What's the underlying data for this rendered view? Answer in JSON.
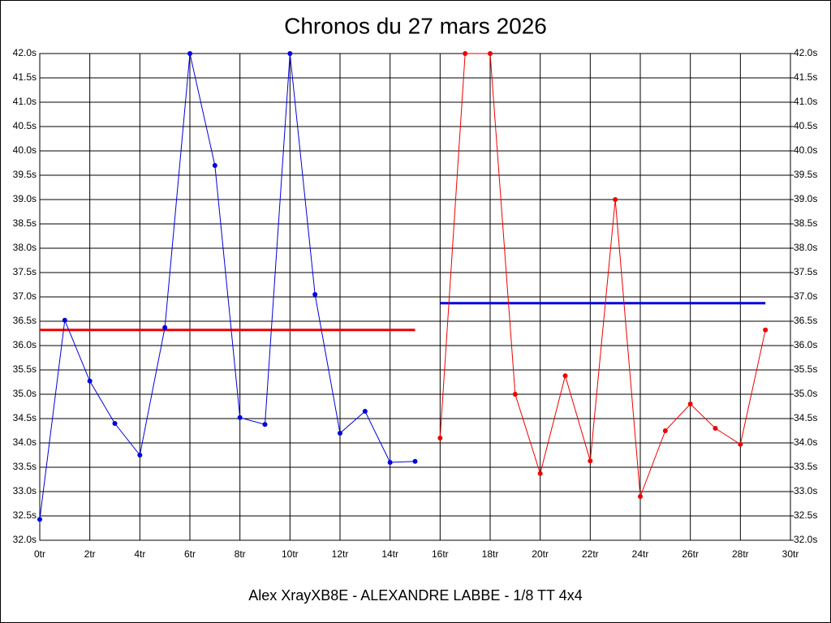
{
  "chart_data": {
    "type": "line",
    "title": "Chronos du 27 mars 2026",
    "footer": "Alex XrayXB8E - ALEXANDRE LABBE - 1/8 TT 4x4",
    "grid": true,
    "xlim": [
      0,
      30
    ],
    "ylim": [
      32,
      42
    ],
    "y2lim": [
      32,
      42
    ],
    "xticks": [
      {
        "value": 0,
        "label": "0tr"
      },
      {
        "value": 2,
        "label": "2tr"
      },
      {
        "value": 4,
        "label": "4tr"
      },
      {
        "value": 6,
        "label": "6tr"
      },
      {
        "value": 8,
        "label": "8tr"
      },
      {
        "value": 10,
        "label": "10tr"
      },
      {
        "value": 12,
        "label": "12tr"
      },
      {
        "value": 14,
        "label": "14tr"
      },
      {
        "value": 16,
        "label": "16tr"
      },
      {
        "value": 18,
        "label": "18tr"
      },
      {
        "value": 20,
        "label": "20tr"
      },
      {
        "value": 22,
        "label": "22tr"
      },
      {
        "value": 24,
        "label": "24tr"
      },
      {
        "value": 26,
        "label": "26tr"
      },
      {
        "value": 28,
        "label": "28tr"
      },
      {
        "value": 30,
        "label": "30tr"
      }
    ],
    "yticks": [
      {
        "value": 32.0,
        "label": "32.0s"
      },
      {
        "value": 32.5,
        "label": "32.5s"
      },
      {
        "value": 33.0,
        "label": "33.0s"
      },
      {
        "value": 33.5,
        "label": "33.5s"
      },
      {
        "value": 34.0,
        "label": "34.0s"
      },
      {
        "value": 34.5,
        "label": "34.5s"
      },
      {
        "value": 35.0,
        "label": "35.0s"
      },
      {
        "value": 35.5,
        "label": "35.5s"
      },
      {
        "value": 36.0,
        "label": "36.0s"
      },
      {
        "value": 36.5,
        "label": "36.5s"
      },
      {
        "value": 37.0,
        "label": "37.0s"
      },
      {
        "value": 37.5,
        "label": "37.5s"
      },
      {
        "value": 38.0,
        "label": "38.0s"
      },
      {
        "value": 38.5,
        "label": "38.5s"
      },
      {
        "value": 39.0,
        "label": "39.0s"
      },
      {
        "value": 39.5,
        "label": "39.5s"
      },
      {
        "value": 40.0,
        "label": "40.0s"
      },
      {
        "value": 40.5,
        "label": "40.5s"
      },
      {
        "value": 41.0,
        "label": "41.0s"
      },
      {
        "value": 41.5,
        "label": "41.5s"
      },
      {
        "value": 42.0,
        "label": "42.0s"
      }
    ],
    "y2ticks": [
      {
        "value": 32.0,
        "label": "32.0s"
      },
      {
        "value": 32.5,
        "label": "32.5s"
      },
      {
        "value": 33.0,
        "label": "33.0s"
      },
      {
        "value": 33.5,
        "label": "33.5s"
      },
      {
        "value": 34.0,
        "label": "34.0s"
      },
      {
        "value": 34.5,
        "label": "34.5s"
      },
      {
        "value": 35.0,
        "label": "35.0s"
      },
      {
        "value": 35.5,
        "label": "35.5s"
      },
      {
        "value": 36.0,
        "label": "36.0s"
      },
      {
        "value": 36.5,
        "label": "36.5s"
      },
      {
        "value": 37.0,
        "label": "37.0s"
      },
      {
        "value": 37.5,
        "label": "37.5s"
      },
      {
        "value": 38.0,
        "label": "38.0s"
      },
      {
        "value": 38.5,
        "label": "38.5s"
      },
      {
        "value": 39.0,
        "label": "39.0s"
      },
      {
        "value": 39.5,
        "label": "39.5s"
      },
      {
        "value": 40.0,
        "label": "40.0s"
      },
      {
        "value": 40.5,
        "label": "40.5s"
      },
      {
        "value": 41.0,
        "label": "41.0s"
      },
      {
        "value": 41.5,
        "label": "41.5s"
      },
      {
        "value": 42.0,
        "label": "42.0s"
      }
    ],
    "series": [
      {
        "color": "#0000dd",
        "x": [
          0,
          1,
          2,
          3,
          4,
          5,
          6,
          7,
          8,
          9,
          10,
          11,
          12,
          13,
          14,
          15
        ],
        "values": [
          32.43,
          36.52,
          35.27,
          34.4,
          33.75,
          36.37,
          42.0,
          39.7,
          34.52,
          34.38,
          42.0,
          37.05,
          34.2,
          34.65,
          33.6,
          33.62
        ]
      },
      {
        "color": "#ee0000",
        "x": [
          16,
          17,
          18,
          19,
          20,
          21,
          22,
          23,
          24,
          25,
          26,
          27,
          28,
          29
        ],
        "values": [
          34.1,
          42.0,
          42.0,
          35.0,
          33.37,
          35.38,
          33.63,
          39.0,
          32.9,
          34.25,
          34.8,
          34.3,
          33.97,
          36.32
        ]
      }
    ],
    "mean_lines": [
      {
        "color": "#ee0000",
        "value": 36.32,
        "x": [
          0,
          15
        ]
      },
      {
        "color": "#0000dd",
        "value": 36.87,
        "x": [
          16,
          29
        ]
      }
    ]
  }
}
